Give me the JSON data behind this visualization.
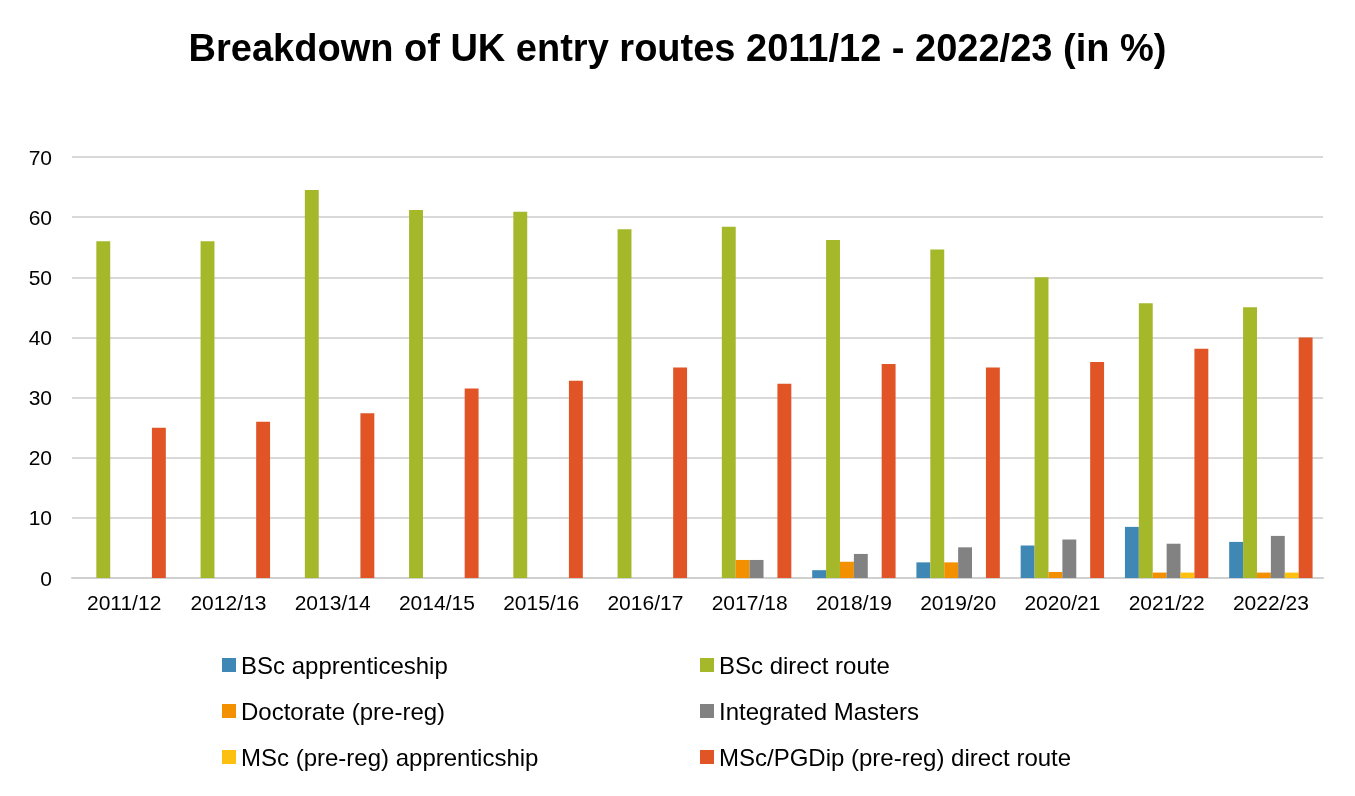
{
  "chart_data": {
    "type": "bar",
    "title": "Breakdown of UK entry routes 2011/12 - 2022/23 (in %)",
    "categories": [
      "2011/12",
      "2012/13",
      "2013/14",
      "2014/15",
      "2015/16",
      "2016/17",
      "2017/18",
      "2018/19",
      "2019/20",
      "2020/21",
      "2021/22",
      "2022/23"
    ],
    "series": [
      {
        "name": "BSc apprenticeship",
        "color": "#3f88b5",
        "values": [
          null,
          null,
          null,
          null,
          null,
          null,
          null,
          1.3,
          2.6,
          5.4,
          8.5,
          6.0
        ]
      },
      {
        "name": "BSc direct route",
        "color": "#a5b82a",
        "values": [
          56,
          56,
          64.5,
          61.2,
          60.9,
          58,
          58.4,
          56.2,
          54.6,
          50,
          45.7,
          45
        ]
      },
      {
        "name": "Doctorate (pre-reg)",
        "color": "#f39000",
        "values": [
          null,
          null,
          null,
          null,
          null,
          null,
          3.0,
          2.7,
          2.6,
          1.0,
          0.9,
          0.9
        ]
      },
      {
        "name": "Integrated Masters",
        "color": "#828282",
        "values": [
          null,
          null,
          null,
          null,
          null,
          null,
          3.0,
          4.0,
          5.1,
          6.4,
          5.7,
          7.0
        ]
      },
      {
        "name": "MSc (pre-reg) apprenticship",
        "color": "#fdc010",
        "values": [
          null,
          null,
          null,
          null,
          null,
          null,
          null,
          null,
          null,
          null,
          0.9,
          0.9
        ]
      },
      {
        "name": "MSc/PGDip (pre-reg) direct route",
        "color": "#e05426",
        "values": [
          25,
          26,
          27.4,
          31.5,
          32.8,
          35,
          32.3,
          35.6,
          35,
          35.9,
          38.1,
          40
        ]
      }
    ],
    "ylim": [
      0,
      70
    ],
    "yticks": [
      0,
      10,
      20,
      30,
      40,
      50,
      60,
      70
    ],
    "grid": "y",
    "legend": "bottom"
  }
}
